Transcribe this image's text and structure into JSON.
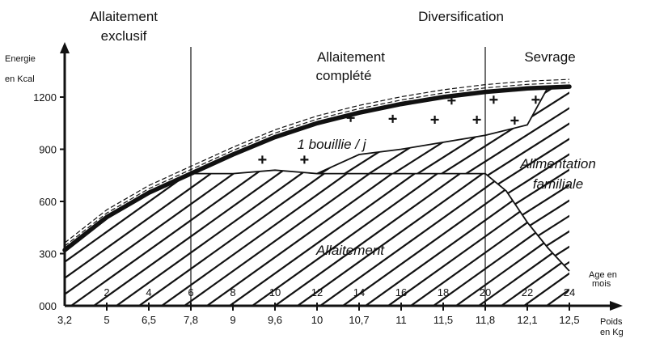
{
  "chart_data": {
    "type": "area",
    "ylabel": [
      "Energie",
      "en Kcal"
    ],
    "y_ticks": [
      "000",
      "300",
      "600",
      "900",
      "1200"
    ],
    "ylim": [
      0,
      1350
    ],
    "age_unit_label": [
      "Age en",
      "mois"
    ],
    "weight_unit_label": [
      "Poids",
      "en Kg"
    ],
    "age_months": [
      0,
      2,
      4,
      6,
      8,
      10,
      12,
      14,
      16,
      18,
      20,
      22,
      24
    ],
    "age_tick_labels": [
      "2",
      "4",
      "6",
      "8",
      "10",
      "12",
      "14",
      "16",
      "18",
      "20",
      "22",
      "24"
    ],
    "weight_kg_labels": [
      "3,2",
      "5",
      "6,5",
      "7,8",
      "9",
      "9,6",
      "10",
      "10,7",
      "11",
      "11,5",
      "11,8",
      "12,1",
      "12,5"
    ],
    "phase_labels": {
      "exclusive": [
        "Allaitement",
        "exclusif"
      ],
      "diversification": "Diversification",
      "complemented": [
        "Allaitement",
        "complété"
      ],
      "weaning": "Sevrage"
    },
    "phase_boundaries_months": [
      6,
      20
    ],
    "region_labels": {
      "breastfeeding": "Allaitement",
      "porridge": "1 bouillie / j",
      "family_food": [
        "Alimentation",
        "familiale"
      ]
    },
    "series": [
      {
        "key": "energy_need",
        "x": [
          0,
          2,
          4,
          6,
          8,
          10,
          12,
          14,
          16,
          18,
          20,
          22,
          24
        ],
        "y": [
          320,
          510,
          650,
          760,
          870,
          970,
          1050,
          1110,
          1160,
          1200,
          1230,
          1250,
          1260
        ]
      },
      {
        "key": "breastmilk_energy",
        "x": [
          0,
          2,
          4,
          6,
          8,
          10,
          12,
          14,
          16,
          18,
          20,
          21,
          22,
          23,
          24
        ],
        "y": [
          320,
          510,
          650,
          760,
          760,
          780,
          760,
          760,
          760,
          760,
          760,
          660,
          480,
          330,
          200
        ]
      },
      {
        "key": "porridge_upper",
        "x": [
          12,
          14,
          16,
          18,
          20,
          22,
          23,
          24
        ],
        "y": [
          760,
          870,
          900,
          940,
          980,
          1040,
          1260,
          1260
        ]
      }
    ]
  }
}
